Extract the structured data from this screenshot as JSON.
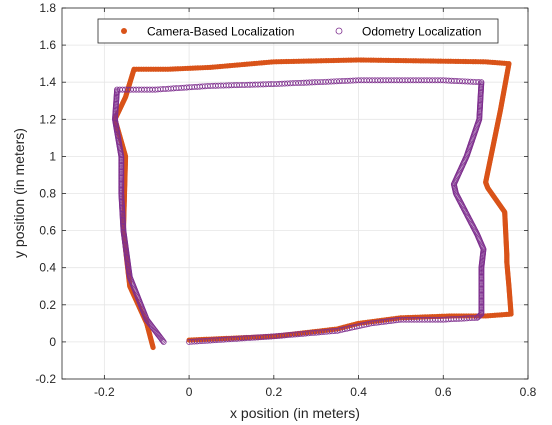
{
  "colors": {
    "camera": "#D95319",
    "odometry": "#7E2F8E",
    "grid": "#e6e6e6",
    "axis": "#262626"
  },
  "chart_data": {
    "type": "scatter",
    "title": "",
    "xlabel": "x position (in meters)",
    "ylabel": "y position (in meters)",
    "xlim": [
      -0.3,
      0.8
    ],
    "ylim": [
      -0.2,
      1.8
    ],
    "xticks": [
      -0.2,
      0,
      0.2,
      0.4,
      0.6,
      0.8
    ],
    "xtick_labels": [
      "-0.2",
      "0",
      "0.2",
      "0.4",
      "0.6",
      "0.8"
    ],
    "yticks": [
      -0.2,
      0,
      0.2,
      0.4,
      0.6,
      0.8,
      1,
      1.2,
      1.4,
      1.6,
      1.8
    ],
    "ytick_labels": [
      "-0.2",
      "0",
      "0.2",
      "0.4",
      "0.6",
      "0.8",
      "1",
      "1.2",
      "1.4",
      "1.6",
      "1.8"
    ],
    "grid": true,
    "legend_position": "top",
    "series": [
      {
        "name": "Camera-Based Localization",
        "marker": "filled-circle",
        "color": "#D95319",
        "path": [
          [
            0,
            0.01
          ],
          [
            0.2,
            0.03
          ],
          [
            0.35,
            0.07
          ],
          [
            0.4,
            0.1
          ],
          [
            0.5,
            0.13
          ],
          [
            0.62,
            0.14
          ],
          [
            0.7,
            0.14
          ],
          [
            0.76,
            0.15
          ],
          [
            0.755,
            0.3
          ],
          [
            0.75,
            0.43
          ],
          [
            0.75,
            0.47
          ],
          [
            0.745,
            0.7
          ],
          [
            0.705,
            0.83
          ],
          [
            0.7,
            0.86
          ],
          [
            0.735,
            1.25
          ],
          [
            0.755,
            1.5
          ],
          [
            0.7,
            1.51
          ],
          [
            0.4,
            1.52
          ],
          [
            0.2,
            1.51
          ],
          [
            0.05,
            1.48
          ],
          [
            -0.05,
            1.47
          ],
          [
            -0.13,
            1.47
          ],
          [
            -0.15,
            1.32
          ],
          [
            -0.175,
            1.2
          ],
          [
            -0.15,
            1.0
          ],
          [
            -0.155,
            0.6
          ],
          [
            -0.14,
            0.3
          ],
          [
            -0.1,
            0.1
          ],
          [
            -0.085,
            -0.03
          ]
        ]
      },
      {
        "name": "Odometry Localization",
        "marker": "open-circle",
        "color": "#7E2F8E",
        "path": [
          [
            0,
            0.0
          ],
          [
            0.2,
            0.03
          ],
          [
            0.35,
            0.06
          ],
          [
            0.43,
            0.1
          ],
          [
            0.5,
            0.12
          ],
          [
            0.6,
            0.12
          ],
          [
            0.68,
            0.13
          ],
          [
            0.69,
            0.15
          ],
          [
            0.69,
            0.37
          ],
          [
            0.69,
            0.4
          ],
          [
            0.695,
            0.5
          ],
          [
            0.68,
            0.58
          ],
          [
            0.63,
            0.8
          ],
          [
            0.625,
            0.85
          ],
          [
            0.655,
            1.0
          ],
          [
            0.685,
            1.2
          ],
          [
            0.69,
            1.4
          ],
          [
            0.6,
            1.41
          ],
          [
            0.4,
            1.41
          ],
          [
            0.2,
            1.39
          ],
          [
            0.05,
            1.38
          ],
          [
            -0.08,
            1.36
          ],
          [
            -0.17,
            1.36
          ],
          [
            -0.175,
            1.2
          ],
          [
            -0.16,
            1.0
          ],
          [
            -0.16,
            0.8
          ],
          [
            -0.155,
            0.6
          ],
          [
            -0.14,
            0.35
          ],
          [
            -0.1,
            0.12
          ],
          [
            -0.06,
            0.0
          ]
        ]
      }
    ]
  }
}
